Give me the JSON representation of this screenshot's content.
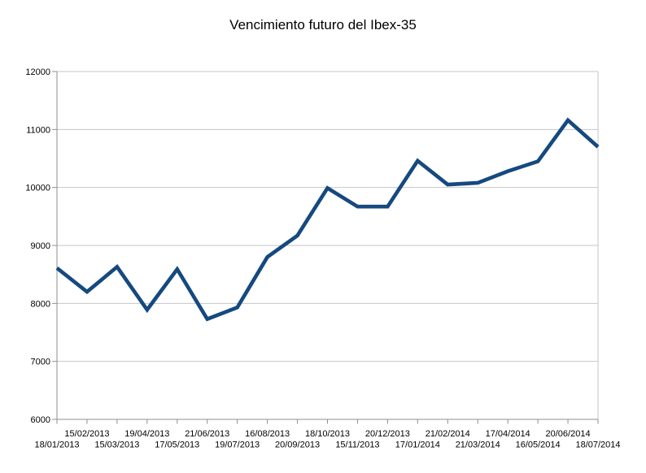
{
  "title": "Vencimiento futuro del Ibex-35",
  "chart_data": {
    "type": "line",
    "title": "Vencimiento futuro del Ibex-35",
    "xlabel": "",
    "ylabel": "",
    "x": [
      "18/01/2013",
      "15/02/2013",
      "15/03/2013",
      "19/04/2013",
      "17/05/2013",
      "21/06/2013",
      "19/07/2013",
      "16/08/2013",
      "20/09/2013",
      "18/10/2013",
      "15/11/2013",
      "20/12/2013",
      "17/01/2014",
      "21/02/2014",
      "21/03/2014",
      "17/04/2014",
      "16/05/2014",
      "20/06/2014",
      "18/07/2014"
    ],
    "values": [
      8610,
      8200,
      8630,
      7890,
      8590,
      7730,
      7930,
      8800,
      9170,
      9990,
      9670,
      9670,
      10460,
      10050,
      10080,
      10280,
      10450,
      11160,
      10700
    ],
    "ylim": [
      6000,
      12000
    ],
    "yticks": [
      6000,
      7000,
      8000,
      9000,
      10000,
      11000,
      12000
    ],
    "grid": "horizontal",
    "legend": "none",
    "x_label_layout": "alternating two rows, first date in lower row",
    "style": {
      "line_color": "#15497F",
      "grid_color": "#C6C6C6",
      "axis_color": "#8F8F8F",
      "text_color": "#000000",
      "background": "#FFFFFF"
    }
  }
}
